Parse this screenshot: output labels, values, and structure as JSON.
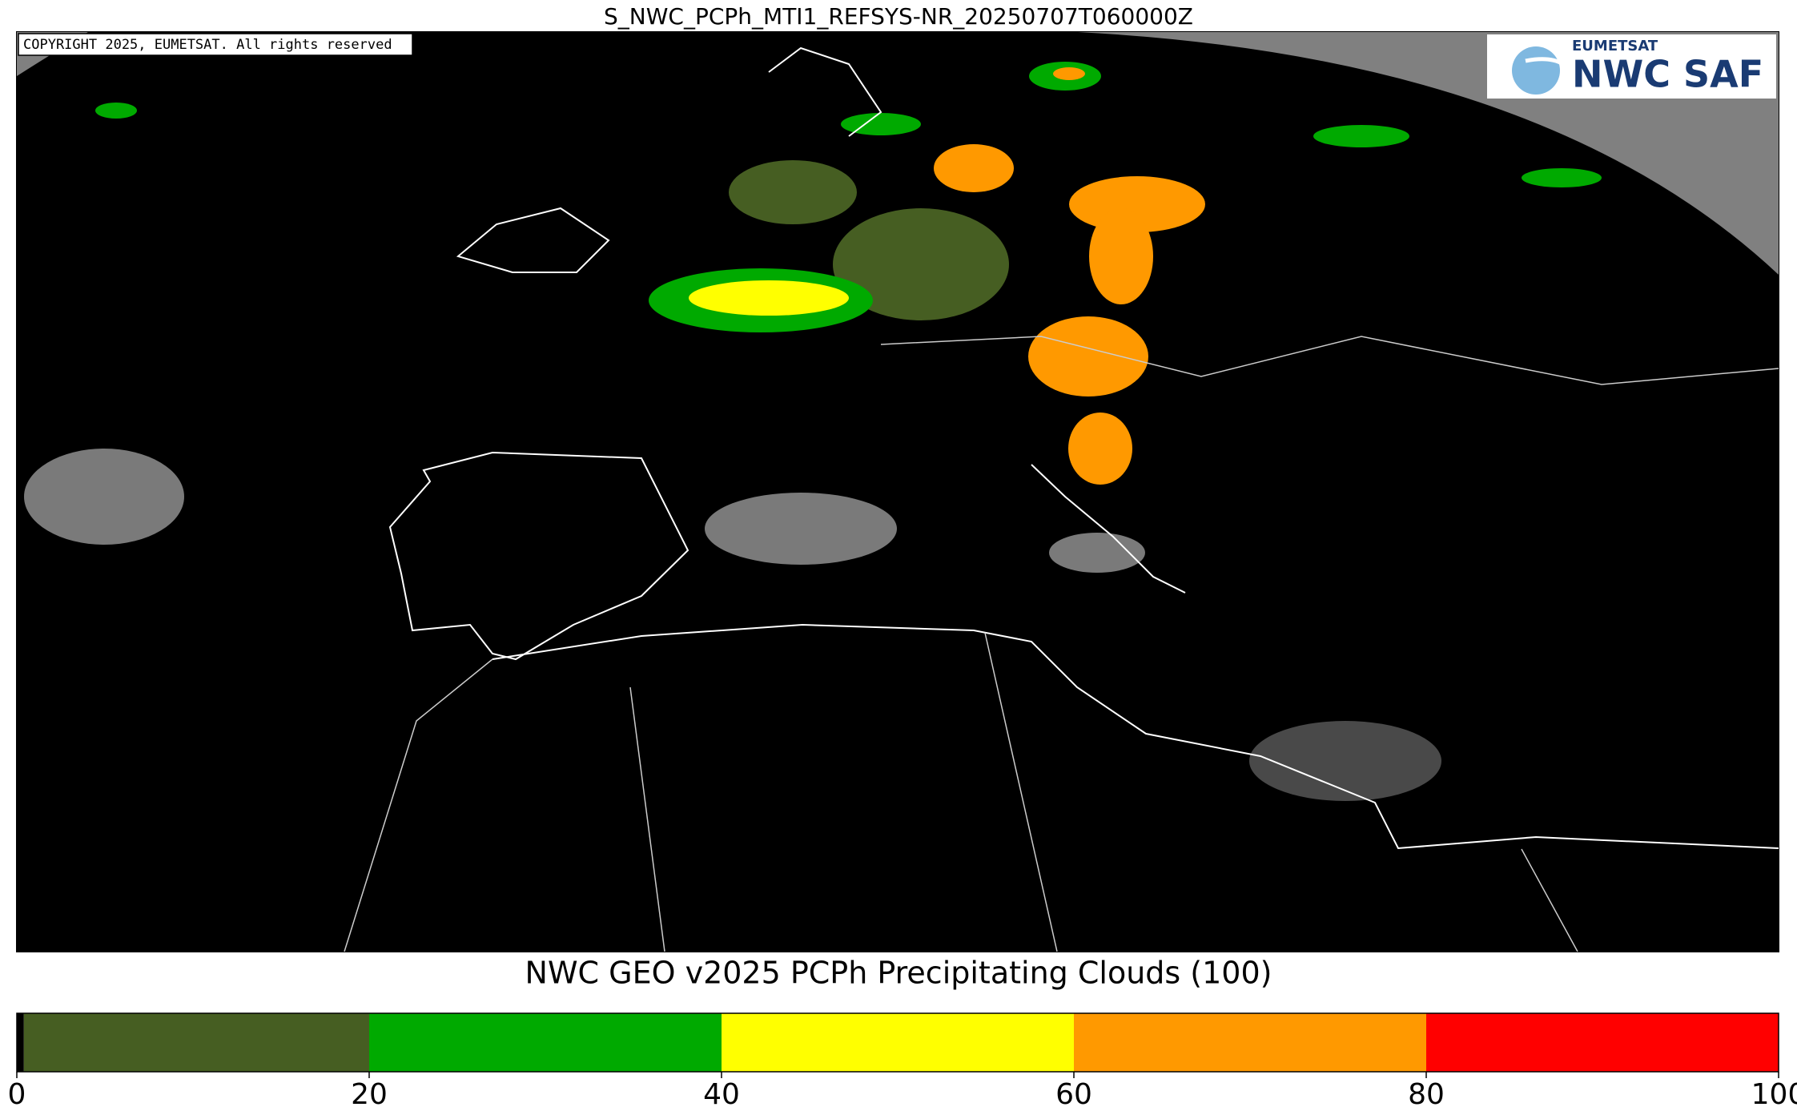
{
  "header": {
    "title": "S_NWC_PCPh_MTI1_REFSYS-NR_20250707T060000Z"
  },
  "map": {
    "copyright": "COPYRIGHT 2025, EUMETSAT. All rights reserved",
    "logo": {
      "org": "EUMETSAT",
      "product": "NWC SAF"
    }
  },
  "colorbar": {
    "label": "NWC GEO v2025 PCPh Precipitating Clouds (100)",
    "bins": [
      0,
      0.4,
      20,
      40,
      60,
      80,
      100
    ],
    "colors": [
      "#000000",
      "#465e22",
      "#00aa00",
      "#ffff00",
      "#ff9900",
      "#ff0000"
    ],
    "xlim": [
      0,
      100
    ],
    "xticks": [
      0,
      20,
      40,
      60,
      80,
      100
    ]
  }
}
